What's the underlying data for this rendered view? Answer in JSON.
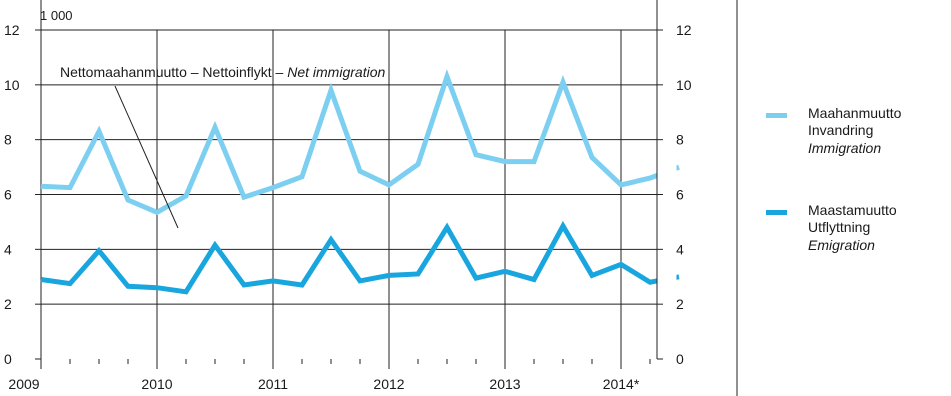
{
  "chart_data": {
    "type": "line",
    "unit_label": "1 000",
    "ylim": [
      0,
      12
    ],
    "yticks": [
      0,
      2,
      4,
      6,
      8,
      10,
      12
    ],
    "year_labels": [
      "2009",
      "2010",
      "2011",
      "2012",
      "2013",
      "2014*"
    ],
    "quarters": [
      "2009Q1",
      "2009Q2",
      "2009Q3",
      "2009Q4",
      "2010Q1",
      "2010Q2",
      "2010Q3",
      "2010Q4",
      "2011Q1",
      "2011Q2",
      "2011Q3",
      "2011Q4",
      "2012Q1",
      "2012Q2",
      "2012Q3",
      "2012Q4",
      "2013Q1",
      "2013Q2",
      "2013Q3",
      "2013Q4",
      "2014Q1",
      "2014Q2",
      "2014Q3"
    ],
    "grid": true,
    "legend_position": "right",
    "series": [
      {
        "name": "Maahanmuutto",
        "legend_lines": [
          "Maahanmuutto",
          "Invandring",
          "Immigration"
        ],
        "color": "#7ccff1",
        "values": [
          6.3,
          6.25,
          8.3,
          5.8,
          5.35,
          5.95,
          8.45,
          5.9,
          6.25,
          6.65,
          9.8,
          6.85,
          6.35,
          7.1,
          10.3,
          7.45,
          7.2,
          7.2,
          10.1,
          7.35,
          6.35,
          6.6,
          7.0
        ]
      },
      {
        "name": "Maastamuutto",
        "legend_lines": [
          "Maastamuutto",
          "Utflyttning",
          "Emigration"
        ],
        "color": "#19a6de",
        "values": [
          2.9,
          2.75,
          3.95,
          2.65,
          2.6,
          2.45,
          4.15,
          2.7,
          2.85,
          2.7,
          4.35,
          2.85,
          3.05,
          3.1,
          4.8,
          2.95,
          3.2,
          2.9,
          4.85,
          3.05,
          3.45,
          2.8,
          3.0
        ]
      }
    ],
    "annotation": {
      "text_parts": [
        "Nettomaahanmuutto – Nettoinflykt – ",
        "Net immigration"
      ]
    }
  }
}
